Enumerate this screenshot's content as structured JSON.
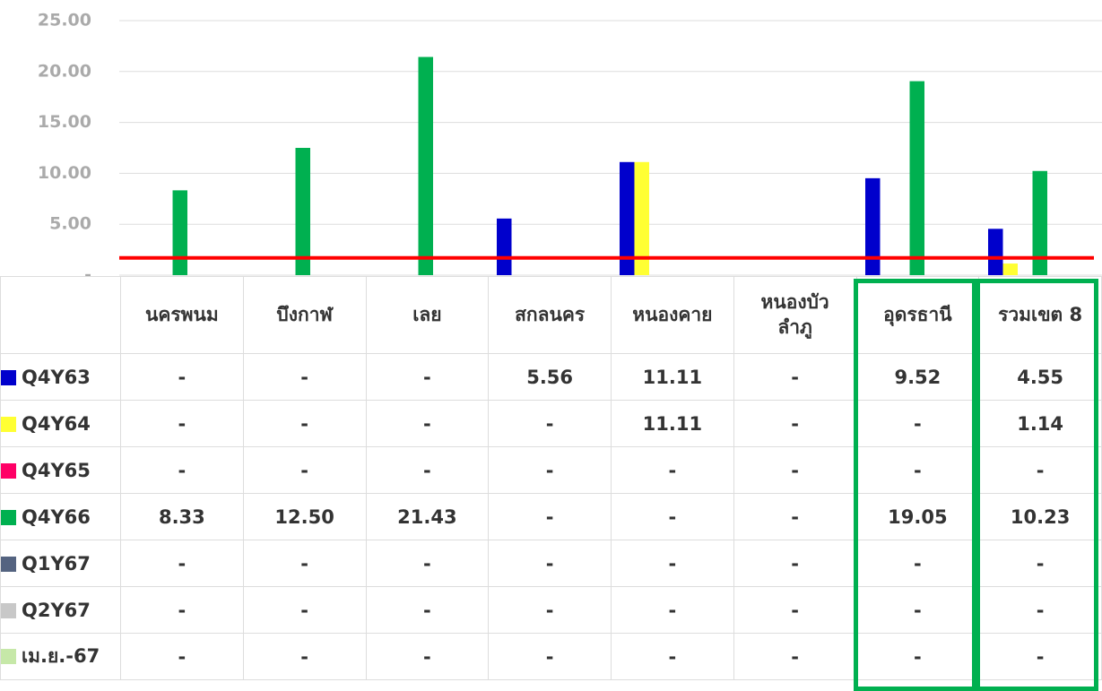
{
  "chart_data": {
    "type": "bar",
    "categories": [
      "นครพนม",
      "บึงกาฬ",
      "เลย",
      "สกลนคร",
      "หนองคาย",
      "หนองบัว\nลำภู",
      "อุดรธานี",
      "รวมเขต 8"
    ],
    "series": [
      {
        "name": "Q4Y63",
        "color": "#0000cc",
        "values": [
          null,
          null,
          null,
          5.56,
          11.11,
          null,
          9.52,
          4.55
        ],
        "value_labels": [
          "-",
          "-",
          "-",
          "5.56",
          "11.11",
          "-",
          "9.52",
          "4.55"
        ]
      },
      {
        "name": "Q4Y64",
        "color": "#ffff33",
        "values": [
          null,
          null,
          null,
          null,
          11.11,
          null,
          null,
          1.14
        ],
        "value_labels": [
          "-",
          "-",
          "-",
          "-",
          "11.11",
          "-",
          "-",
          "1.14"
        ]
      },
      {
        "name": "Q4Y65",
        "color": "#ff0066",
        "values": [
          null,
          null,
          null,
          null,
          null,
          null,
          null,
          null
        ],
        "value_labels": [
          "-",
          "-",
          "-",
          "-",
          "-",
          "-",
          "-",
          "-"
        ]
      },
      {
        "name": "Q4Y66",
        "color": "#00b050",
        "values": [
          8.33,
          12.5,
          21.43,
          null,
          null,
          null,
          19.05,
          10.23
        ],
        "value_labels": [
          "8.33",
          "12.50",
          "21.43",
          "-",
          "-",
          "-",
          "19.05",
          "10.23"
        ]
      },
      {
        "name": "Q1Y67",
        "color": "#546380",
        "values": [
          null,
          null,
          null,
          null,
          null,
          null,
          null,
          null
        ],
        "value_labels": [
          "-",
          "-",
          "-",
          "-",
          "-",
          "-",
          "-",
          "-"
        ]
      },
      {
        "name": "Q2Y67",
        "color": "#c8c8c8",
        "values": [
          null,
          null,
          null,
          null,
          null,
          null,
          null,
          null
        ],
        "value_labels": [
          "-",
          "-",
          "-",
          "-",
          "-",
          "-",
          "-",
          "-"
        ]
      },
      {
        "name": "เม.ย.-67",
        "color": "#c6e8a8",
        "values": [
          null,
          null,
          null,
          null,
          null,
          null,
          null,
          null
        ],
        "value_labels": [
          "-",
          "-",
          "-",
          "-",
          "-",
          "-",
          "-",
          "-"
        ]
      }
    ],
    "ylim": [
      0,
      25
    ],
    "yticks": [
      {
        "value": 0,
        "label": "-"
      },
      {
        "value": 5,
        "label": "5.00"
      },
      {
        "value": 10,
        "label": "10.00"
      },
      {
        "value": 15,
        "label": "15.00"
      },
      {
        "value": 20,
        "label": "20.00"
      },
      {
        "value": 25,
        "label": "25.00"
      }
    ],
    "grid": true,
    "target_line": {
      "value": 1.7,
      "color": "#ff0000"
    }
  }
}
